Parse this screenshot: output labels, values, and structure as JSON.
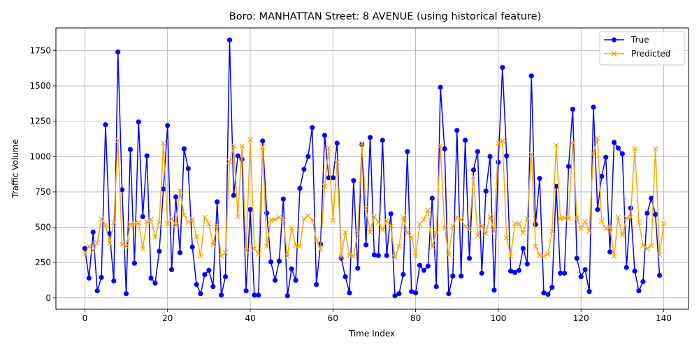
{
  "chart_data": {
    "type": "line",
    "title": "Boro: MANHATTAN Street: 8 AVENUE (using historical feature)",
    "xlabel": "Time Index",
    "ylabel": "Traffic Volume",
    "xlim": [
      -7,
      146
    ],
    "ylim": [
      -80,
      1910
    ],
    "xticks": [
      0,
      20,
      40,
      60,
      80,
      100,
      120,
      140
    ],
    "xtick_labels": [
      "0",
      "20",
      "40",
      "60",
      "80",
      "100",
      "120",
      "140"
    ],
    "yticks": [
      0,
      250,
      500,
      750,
      1000,
      1250,
      1500,
      1750
    ],
    "ytick_labels": [
      "0",
      "250",
      "500",
      "750",
      "1000",
      "1250",
      "1500",
      "1750"
    ],
    "grid": true,
    "legend_position": "top-right",
    "series": [
      {
        "name": "True",
        "color": "#0000ff",
        "marker": "circle",
        "values": [
          350,
          140,
          465,
          50,
          145,
          1225,
          455,
          120,
          1740,
          765,
          30,
          1050,
          245,
          1245,
          575,
          1005,
          140,
          105,
          330,
          770,
          1220,
          200,
          715,
          320,
          1055,
          915,
          360,
          95,
          30,
          165,
          195,
          80,
          680,
          20,
          150,
          1825,
          725,
          1005,
          980,
          50,
          625,
          20,
          20,
          1110,
          600,
          255,
          125,
          260,
          700,
          15,
          205,
          125,
          775,
          910,
          1000,
          1205,
          95,
          380,
          1150,
          850,
          850,
          1095,
          280,
          150,
          35,
          830,
          210,
          1085,
          375,
          1135,
          305,
          300,
          1115,
          300,
          595,
          15,
          30,
          165,
          1035,
          45,
          35,
          230,
          195,
          225,
          705,
          80,
          1490,
          1055,
          30,
          155,
          1185,
          155,
          1115,
          280,
          905,
          1035,
          175,
          755,
          1000,
          55,
          960,
          1630,
          1005,
          190,
          180,
          195,
          350,
          240,
          1570,
          520,
          845,
          35,
          25,
          75,
          790,
          175,
          175,
          930,
          1335,
          280,
          150,
          200,
          45,
          1350,
          625,
          860,
          995,
          325,
          1100,
          1060,
          1020,
          215,
          635,
          190,
          50,
          115,
          600,
          705,
          590,
          160
        ]
      },
      {
        "name": "Predicted",
        "color": "#ffa500",
        "marker": "x",
        "values": [
          310,
          365,
          335,
          390,
          560,
          515,
          385,
          535,
          1115,
          380,
          365,
          520,
          525,
          530,
          350,
          540,
          555,
          430,
          535,
          1095,
          525,
          560,
          515,
          760,
          585,
          535,
          555,
          435,
          295,
          570,
          525,
          375,
          510,
          295,
          320,
          965,
          1075,
          575,
          1075,
          335,
          1120,
          350,
          310,
          1070,
          365,
          550,
          555,
          570,
          550,
          295,
          495,
          370,
          365,
          560,
          580,
          550,
          410,
          345,
          790,
          1060,
          550,
          960,
          290,
          465,
          300,
          295,
          460,
          1095,
          635,
          465,
          575,
          535,
          480,
          545,
          505,
          285,
          365,
          570,
          460,
          430,
          295,
          520,
          555,
          620,
          360,
          460,
          1075,
          495,
          305,
          505,
          570,
          555,
          505,
          485,
          860,
          440,
          510,
          455,
          575,
          470,
          1095,
          1110,
          425,
          295,
          525,
          525,
          460,
          560,
          1015,
          365,
          300,
          295,
          310,
          470,
          1080,
          560,
          565,
          560,
          1100,
          565,
          490,
          540,
          470,
          1020,
          1130,
          540,
          490,
          500,
          295,
          570,
          445,
          565,
          570,
          1055,
          535,
          370,
          350,
          370,
          1055,
          305,
          525
        ]
      }
    ]
  }
}
